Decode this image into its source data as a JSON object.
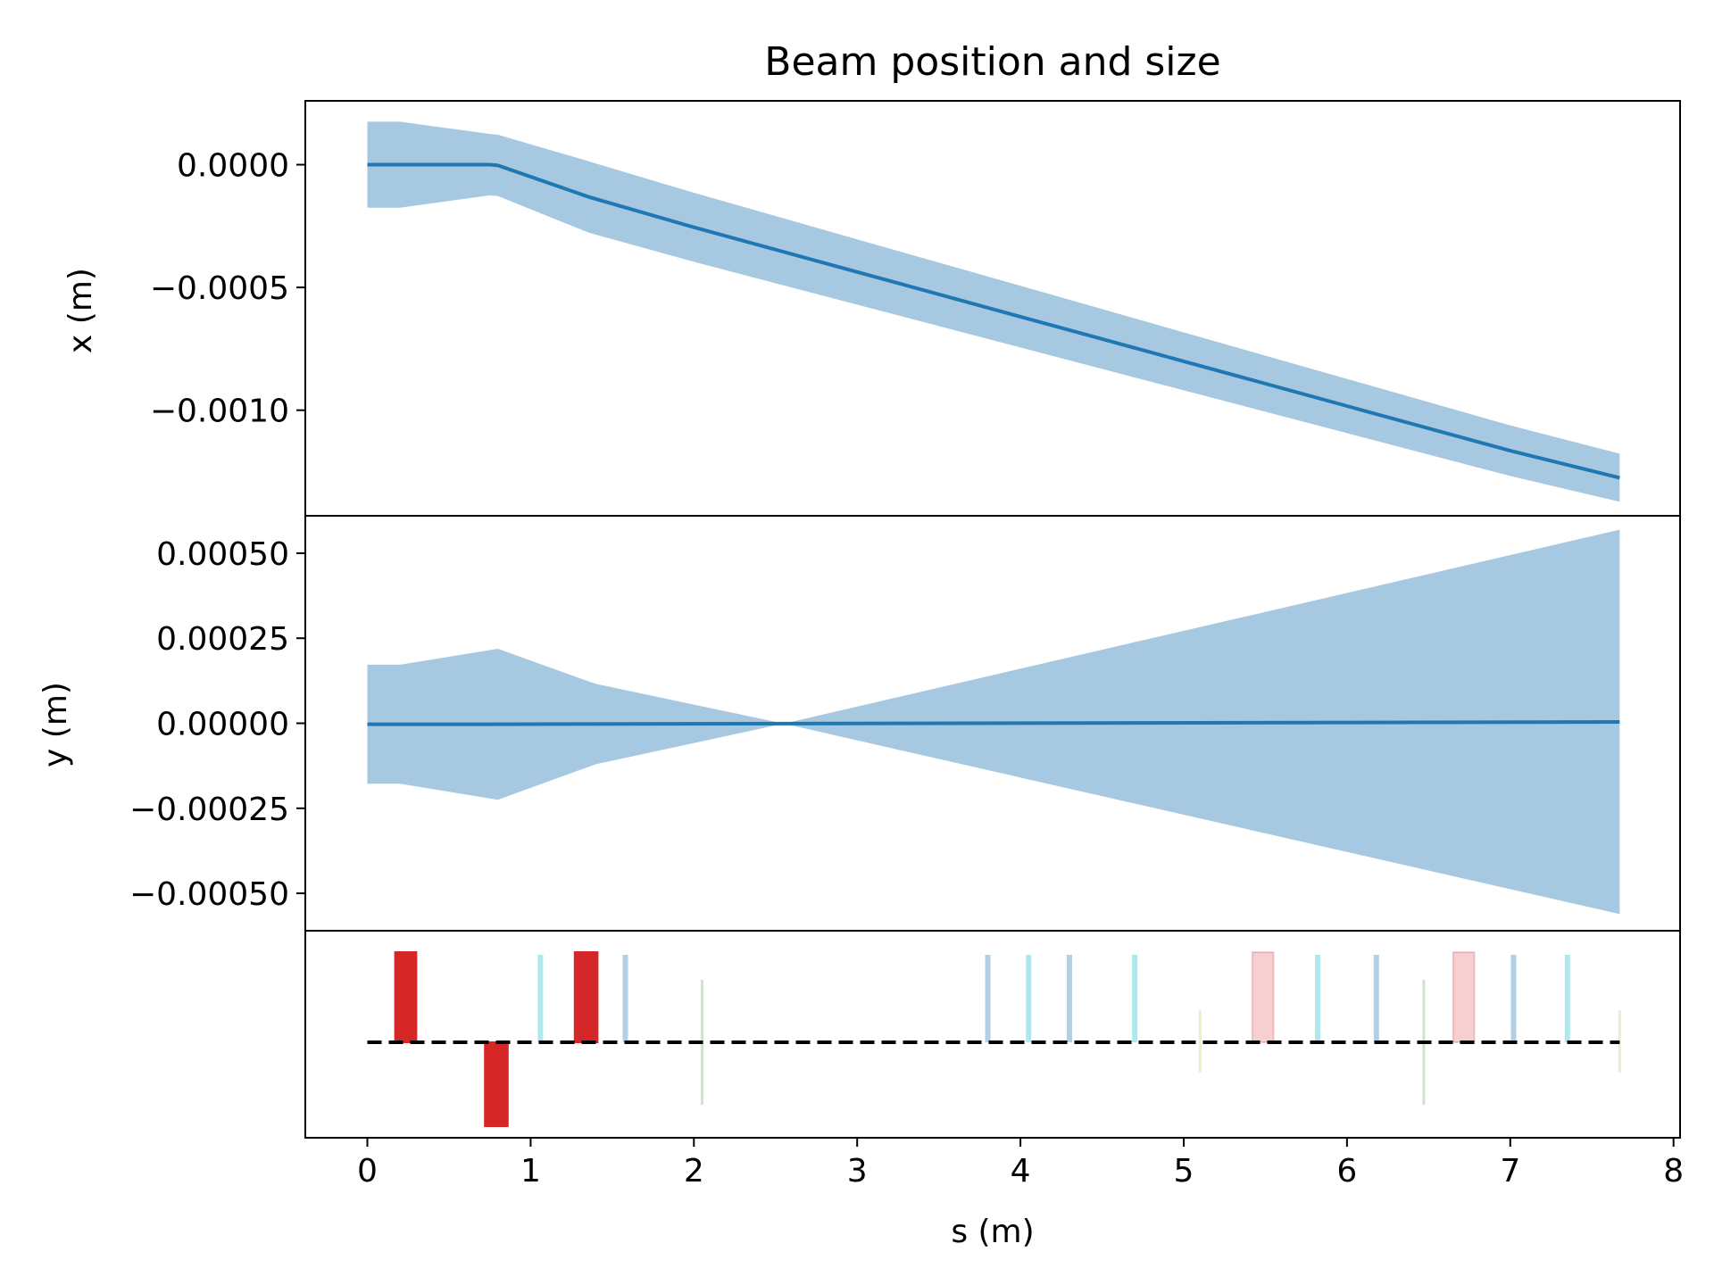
{
  "chart_data": {
    "type": "line",
    "title": "Beam position and size",
    "xlabel": "s (m)",
    "xlim": [
      -0.38,
      8.04
    ],
    "xticks": [
      0,
      1,
      2,
      3,
      4,
      5,
      6,
      7,
      8
    ],
    "xtick_labels": [
      "0",
      "1",
      "2",
      "3",
      "4",
      "5",
      "6",
      "7",
      "8"
    ],
    "panels": [
      {
        "id": "x",
        "ylabel": "x (m)",
        "ylim": [
          -0.00143,
          0.00026
        ],
        "yticks": [
          0.0,
          -0.0005,
          -0.001
        ],
        "ytick_labels": [
          "0.0000",
          "−0.0005",
          "−0.0010"
        ],
        "mean": {
          "s": [
            0,
            0.2,
            0.75,
            0.8,
            1.35,
            1.4,
            2,
            3,
            4,
            5,
            6,
            7,
            7.67
          ],
          "values": [
            0,
            0,
            0,
            -3e-06,
            -0.00013,
            -0.00014,
            -0.000255,
            -0.000437,
            -0.000619,
            -0.000801,
            -0.000983,
            -0.001165,
            -0.001275
          ]
        },
        "envelope_halfwidth": {
          "s": [
            0,
            0.2,
            0.75,
            0.8,
            1.35,
            1.4,
            7.67
          ],
          "values": [
            0.000175,
            0.000175,
            0.000125,
            0.000125,
            0.000145,
            0.000145,
            9.8e-05
          ]
        }
      },
      {
        "id": "y",
        "ylabel": "y (m)",
        "ylim": [
          -0.00061,
          0.00061
        ],
        "yticks": [
          0.0005,
          0.00025,
          0.0,
          -0.00025,
          -0.0005
        ],
        "ytick_labels": [
          "0.00050",
          "0.00025",
          "0.00000",
          "−0.00025",
          "−0.00050"
        ],
        "mean": {
          "s": [
            0,
            0.75,
            7.67
          ],
          "values": [
            -3e-06,
            -3e-06,
            4e-06
          ]
        },
        "envelope_halfwidth": {
          "s": [
            0,
            0.2,
            0.8,
            1.3,
            1.4,
            2.55,
            7.67
          ],
          "values": [
            0.000175,
            0.000175,
            0.000222,
            0.000135,
            0.000118,
            0.0,
            0.000565
          ]
        }
      }
    ],
    "layout_panel": {
      "baseline": "dashed",
      "elements": [
        {
          "kind": "quadrupole",
          "s0": 0.17,
          "s1": 0.3,
          "focus": 1,
          "color": "#d62728",
          "alpha": 1.0
        },
        {
          "kind": "quadrupole",
          "s0": 0.72,
          "s1": 0.86,
          "focus": -1,
          "color": "#d62728",
          "alpha": 1.0
        },
        {
          "kind": "quadrupole",
          "s0": 1.27,
          "s1": 1.41,
          "focus": 1,
          "color": "#d62728",
          "alpha": 1.0
        },
        {
          "kind": "quadrupole",
          "s0": 5.42,
          "s1": 5.55,
          "focus": 1,
          "color": "#d62728",
          "alpha": 0.22
        },
        {
          "kind": "quadrupole",
          "s0": 6.65,
          "s1": 6.78,
          "focus": 1,
          "color": "#d62728",
          "alpha": 0.22
        },
        {
          "kind": "marker",
          "s": 1.06,
          "color": "#17becf"
        },
        {
          "kind": "marker",
          "s": 1.58,
          "color": "#1f77b4"
        },
        {
          "kind": "marker",
          "s": 3.8,
          "color": "#1f77b4"
        },
        {
          "kind": "marker",
          "s": 4.05,
          "color": "#17becf"
        },
        {
          "kind": "marker",
          "s": 4.3,
          "color": "#1f77b4"
        },
        {
          "kind": "marker",
          "s": 4.7,
          "color": "#17becf"
        },
        {
          "kind": "marker",
          "s": 5.82,
          "color": "#17becf"
        },
        {
          "kind": "marker",
          "s": 6.18,
          "color": "#1f77b4"
        },
        {
          "kind": "marker",
          "s": 7.02,
          "color": "#1f77b4"
        },
        {
          "kind": "marker",
          "s": 7.35,
          "color": "#17becf"
        },
        {
          "kind": "monitor",
          "s": 2.05,
          "color": "#2ca02c"
        },
        {
          "kind": "monitor",
          "s": 6.47,
          "color": "#2ca02c"
        },
        {
          "kind": "aperture",
          "s": 5.1,
          "color": "#bcbd22"
        },
        {
          "kind": "aperture",
          "s": 7.67,
          "color": "#bcbd22"
        }
      ]
    },
    "colors": {
      "line": "#1f77b4",
      "band": "#a6c8e0",
      "quadrupole": "#d62728"
    }
  }
}
